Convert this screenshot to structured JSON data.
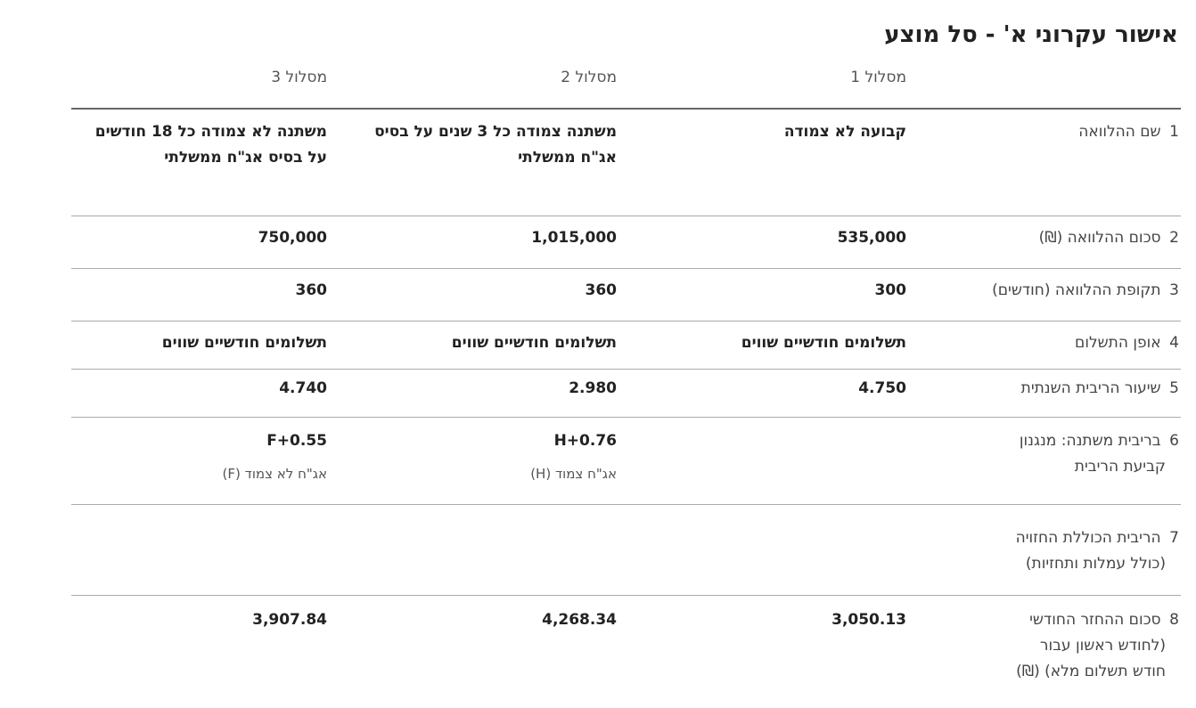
{
  "title": "אישור עקרוני א' - סל מוצע",
  "headers": {
    "track1": "מסלול 1",
    "track2": "מסלול 2",
    "track3": "מסלול 3"
  },
  "rows": [
    {
      "num": "1",
      "label": "שם ההלוואה",
      "t1": "קבועה לא צמודה",
      "t2": "משתנה צמודה כל 3 שנים על בסיס אג\"ח ממשלתי",
      "t3": "משתנה לא צמודה כל 18 חודשים על בסיס אג\"ח ממשלתי"
    },
    {
      "num": "2",
      "label": "סכום ההלוואה (₪)",
      "t1": "535,000",
      "t2": "1,015,000",
      "t3": "750,000"
    },
    {
      "num": "3",
      "label": "תקופת ההלוואה (חודשים)",
      "t1": "300",
      "t2": "360",
      "t3": "360"
    },
    {
      "num": "4",
      "label": "אופן התשלום",
      "t1": "תשלומים חודשיים שווים",
      "t2": "תשלומים חודשיים שווים",
      "t3": "תשלומים חודשיים שווים"
    },
    {
      "num": "5",
      "label": "שיעור הריבית השנתית",
      "t1": "4.750",
      "t2": "2.980",
      "t3": "4.740"
    },
    {
      "num": "6",
      "label_line1": "בריבית משתנה: מנגנון",
      "label_line2": "קביעת הריבית",
      "t2": "H+0.76",
      "t2_note": "אג\"ח צמוד (H)",
      "t3": "F+0.55",
      "t3_note": "אג\"ח לא צמוד (F)"
    },
    {
      "num": "7",
      "label_line1": "הריבית הכוללת החזויה",
      "label_line2": "(כולל עמלות ותחזיות)"
    },
    {
      "num": "8",
      "label_line1": "סכום ההחזר החודשי",
      "label_line2": "(לחודש ראשון עבור",
      "label_line3": "חודש תשלום מלא) (₪)",
      "t1": "3,050.13",
      "t2": "4,268.34",
      "t3": "3,907.84"
    }
  ]
}
